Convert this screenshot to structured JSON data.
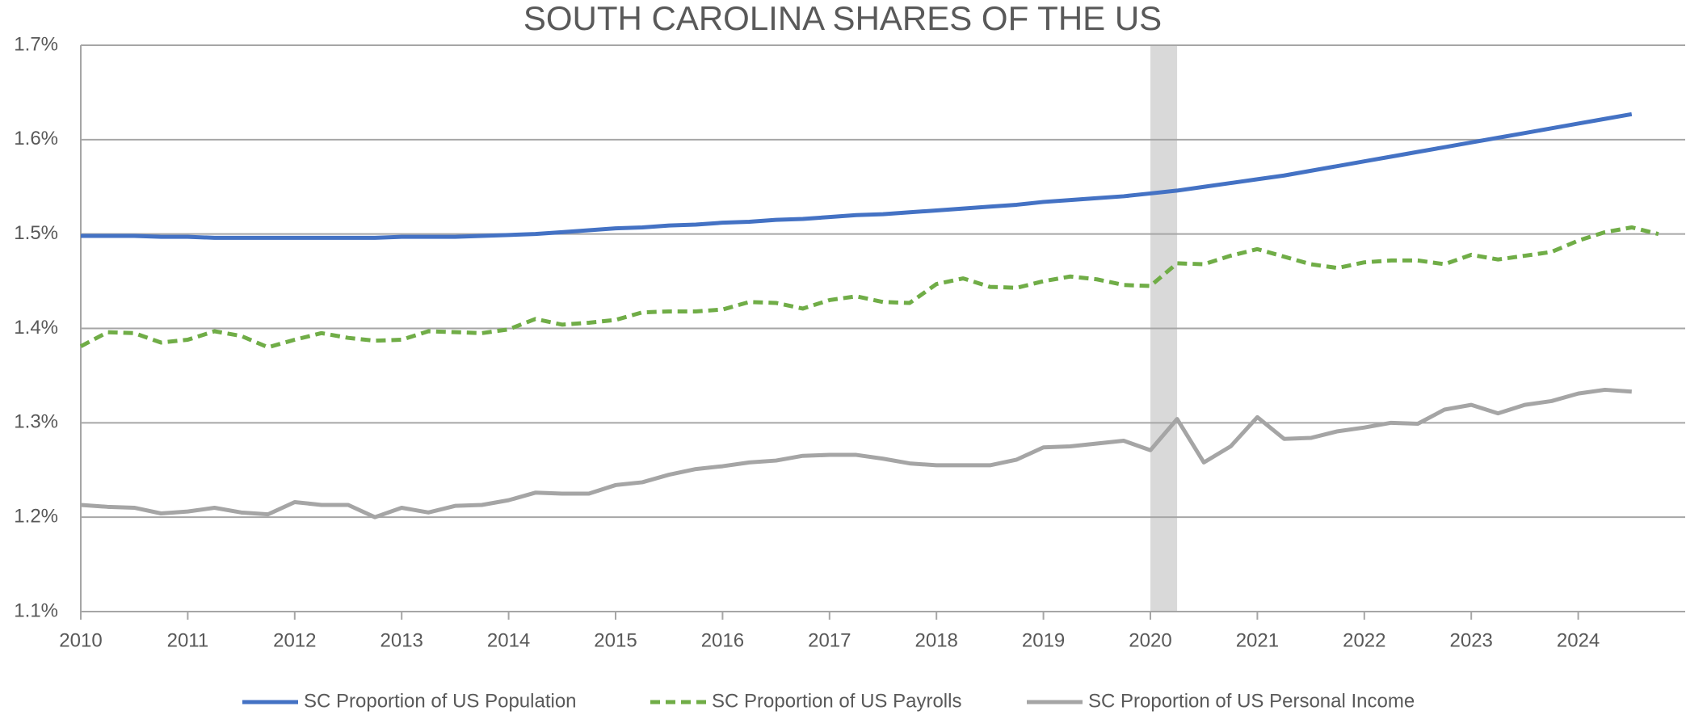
{
  "chart_data": {
    "type": "line",
    "title": "SOUTH CAROLINA SHARES OF THE US",
    "x": [
      2010,
      2010.25,
      2010.5,
      2010.75,
      2011,
      2011.25,
      2011.5,
      2011.75,
      2012,
      2012.25,
      2012.5,
      2012.75,
      2013,
      2013.25,
      2013.5,
      2013.75,
      2014,
      2014.25,
      2014.5,
      2014.75,
      2015,
      2015.25,
      2015.5,
      2015.75,
      2016,
      2016.25,
      2016.5,
      2016.75,
      2017,
      2017.25,
      2017.5,
      2017.75,
      2018,
      2018.25,
      2018.5,
      2018.75,
      2019,
      2019.25,
      2019.5,
      2019.75,
      2020,
      2020.25,
      2020.5,
      2020.75,
      2021,
      2021.25,
      2021.5,
      2021.75,
      2022,
      2022.25,
      2022.5,
      2022.75,
      2023,
      2023.25,
      2023.5,
      2023.75,
      2024,
      2024.25,
      2024.5,
      2024.75
    ],
    "series": [
      {
        "name": "SC Proportion of US Population",
        "color": "#4472c4",
        "line_style": "solid",
        "values": [
          1.498,
          1.498,
          1.498,
          1.497,
          1.497,
          1.496,
          1.496,
          1.496,
          1.496,
          1.496,
          1.496,
          1.496,
          1.497,
          1.497,
          1.497,
          1.498,
          1.499,
          1.5,
          1.502,
          1.504,
          1.506,
          1.507,
          1.509,
          1.51,
          1.512,
          1.513,
          1.515,
          1.516,
          1.518,
          1.52,
          1.521,
          1.523,
          1.525,
          1.527,
          1.529,
          1.531,
          1.534,
          1.536,
          1.538,
          1.54,
          1.543,
          1.546,
          1.55,
          1.554,
          1.558,
          1.562,
          1.567,
          1.572,
          1.577,
          1.582,
          1.587,
          1.592,
          1.597,
          1.602,
          1.607,
          1.612,
          1.617,
          1.622,
          1.627,
          null
        ]
      },
      {
        "name": "SC Proportion of US Payrolls",
        "color": "#70ad47",
        "line_style": "dashed",
        "values": [
          1.381,
          1.396,
          1.395,
          1.385,
          1.388,
          1.397,
          1.392,
          1.38,
          1.388,
          1.395,
          1.39,
          1.387,
          1.388,
          1.397,
          1.396,
          1.395,
          1.399,
          1.41,
          1.404,
          1.406,
          1.409,
          1.417,
          1.418,
          1.418,
          1.42,
          1.428,
          1.427,
          1.421,
          1.43,
          1.434,
          1.428,
          1.427,
          1.447,
          1.453,
          1.444,
          1.443,
          1.45,
          1.455,
          1.452,
          1.446,
          1.445,
          1.469,
          1.468,
          1.477,
          1.484,
          1.476,
          1.468,
          1.464,
          1.47,
          1.472,
          1.472,
          1.468,
          1.478,
          1.473,
          1.477,
          1.481,
          1.493,
          1.502,
          1.507,
          1.5
        ]
      },
      {
        "name": "SC Proportion of US Personal Income",
        "color": "#a5a5a5",
        "line_style": "solid",
        "values": [
          1.213,
          1.211,
          1.21,
          1.204,
          1.206,
          1.21,
          1.205,
          1.203,
          1.216,
          1.213,
          1.213,
          1.2,
          1.21,
          1.205,
          1.212,
          1.213,
          1.218,
          1.226,
          1.225,
          1.225,
          1.234,
          1.237,
          1.245,
          1.251,
          1.254,
          1.258,
          1.26,
          1.265,
          1.266,
          1.266,
          1.262,
          1.257,
          1.255,
          1.255,
          1.255,
          1.261,
          1.274,
          1.275,
          1.278,
          1.281,
          1.271,
          1.304,
          1.258,
          1.275,
          1.306,
          1.283,
          1.284,
          1.291,
          1.295,
          1.3,
          1.299,
          1.314,
          1.319,
          1.31,
          1.319,
          1.323,
          1.331,
          1.335,
          1.333,
          null
        ]
      }
    ],
    "shaded_region": {
      "x": [
        2020,
        2020.25
      ],
      "color": "#d9d9d9"
    },
    "xlim": [
      2010,
      2025
    ],
    "xticks": [
      2010,
      2011,
      2012,
      2013,
      2014,
      2015,
      2016,
      2017,
      2018,
      2019,
      2020,
      2021,
      2022,
      2023,
      2024
    ],
    "ylim": [
      1.1,
      1.7
    ],
    "yticks": [
      {
        "value": 1.1,
        "label": "1.1%"
      },
      {
        "value": 1.2,
        "label": "1.2%"
      },
      {
        "value": 1.3,
        "label": "1.3%"
      },
      {
        "value": 1.4,
        "label": "1.4%"
      },
      {
        "value": 1.5,
        "label": "1.5%"
      },
      {
        "value": 1.6,
        "label": "1.6%"
      },
      {
        "value": 1.7,
        "label": "1.7%"
      }
    ],
    "grid": true,
    "legend": "bottom"
  }
}
